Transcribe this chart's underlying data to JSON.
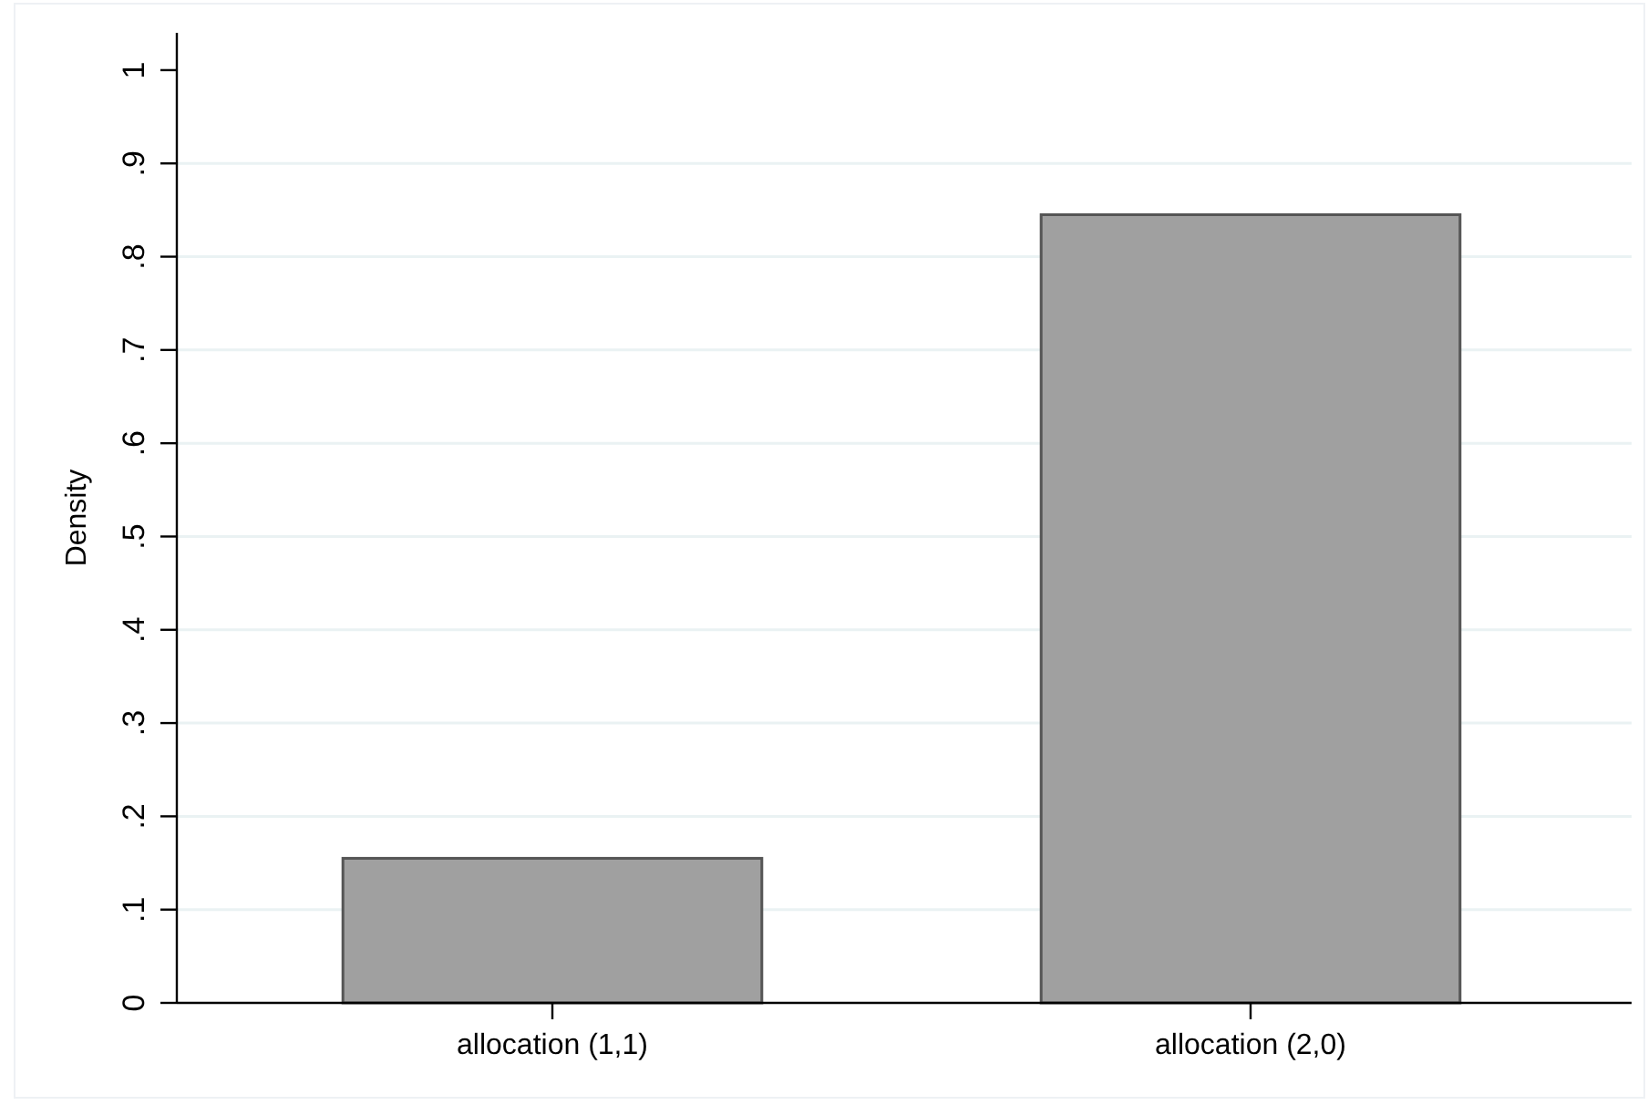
{
  "chart_data": {
    "type": "bar",
    "ylabel": "Density",
    "categories": [
      "allocation (1,1)",
      "allocation (2,0)"
    ],
    "values": [
      0.155,
      0.845
    ],
    "color": "#a0a0a0",
    "ylim": [
      0,
      1.04
    ],
    "yticks": [
      0,
      {
        "value": 0.1,
        "label": ".1"
      },
      {
        "value": 0.2,
        "label": ".2"
      },
      {
        "value": 0.3,
        "label": ".3"
      },
      {
        "value": 0.4,
        "label": ".4"
      },
      {
        "value": 0.5,
        "label": ".5"
      },
      {
        "value": 0.6,
        "label": ".6"
      },
      {
        "value": 0.7,
        "label": ".7"
      },
      {
        "value": 0.8,
        "label": ".8"
      },
      {
        "value": 0.9,
        "label": ".9"
      },
      1
    ],
    "grid": "y"
  }
}
